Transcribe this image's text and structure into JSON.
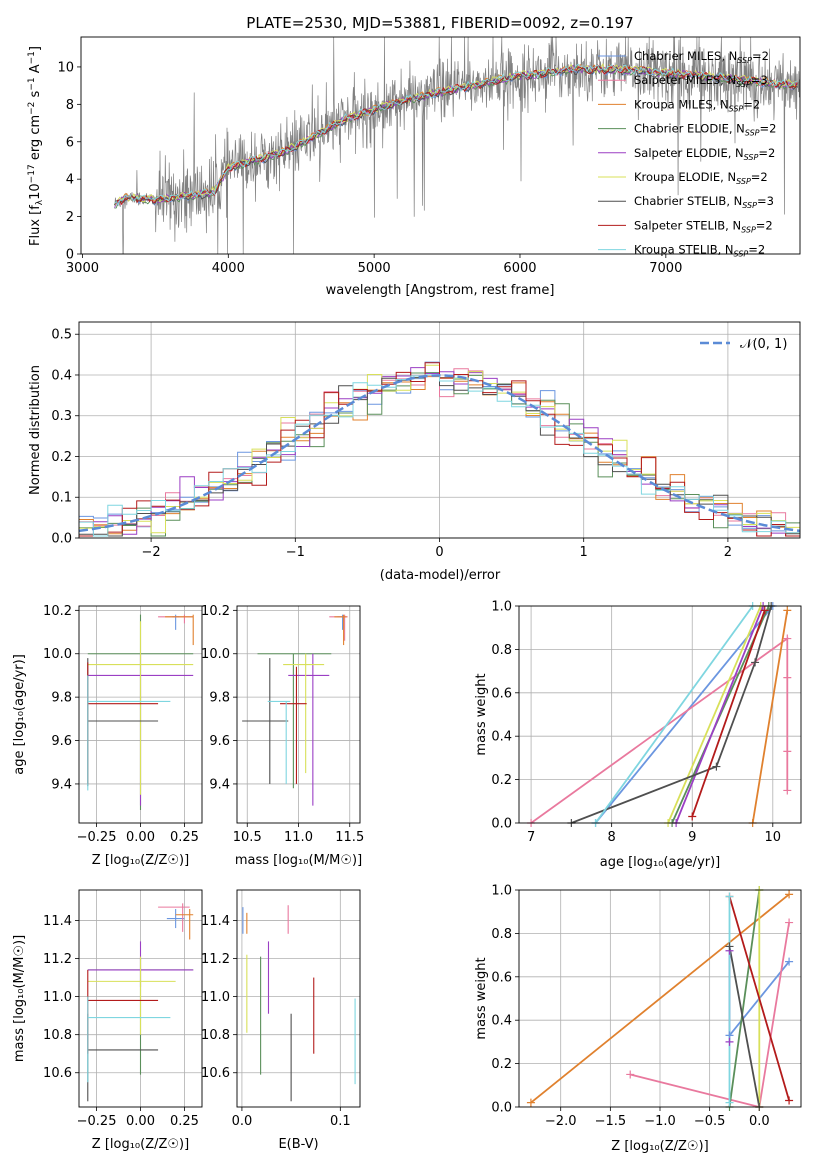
{
  "title": "PLATE=2530, MJD=53881, FIBERID=0092, z=0.197",
  "models": [
    {
      "label": "Chabrier MILES, N",
      "suffix": "=2",
      "color": "#6b96e0"
    },
    {
      "label": "Salpeter MILES, N",
      "suffix": "=3",
      "color": "#e9799e"
    },
    {
      "label": "Kroupa MILES, N",
      "suffix": "=2",
      "color": "#e0812e"
    },
    {
      "label": "Chabrier ELODIE, N",
      "suffix": "=2",
      "color": "#5a8f5a"
    },
    {
      "label": "Salpeter ELODIE, N",
      "suffix": "=2",
      "color": "#9b3fc4"
    },
    {
      "label": "Kroupa ELODIE, N",
      "suffix": "=2",
      "color": "#d8e05a"
    },
    {
      "label": "Chabrier STELIB, N",
      "suffix": "=3",
      "color": "#4f4f4f"
    },
    {
      "label": "Salpeter STELIB, N",
      "suffix": "=2",
      "color": "#b31b1b"
    },
    {
      "label": "Kroupa STELIB, N",
      "suffix": "=2",
      "color": "#7fd6e0"
    }
  ],
  "legend_sub": "SSP",
  "chart_data": [
    {
      "type": "line",
      "name": "spectrum",
      "xlabel": "wavelength [Angstrom, rest frame]",
      "ylabel": "Flux [f",
      "ylabel_parts": [
        "Flux [f",
        "λ",
        "10",
        "−17",
        " erg cm",
        "−2",
        " s",
        "−1",
        " A",
        "−1",
        "]"
      ],
      "xlim": [
        2990,
        7920
      ],
      "ylim": [
        0,
        11.6
      ],
      "xticks": [
        3000,
        4000,
        5000,
        6000,
        7000
      ],
      "yticks": [
        0,
        2,
        4,
        6,
        8,
        10
      ],
      "data_color": "#808080",
      "model_anchor_x": [
        3220,
        3300,
        3500,
        3900,
        4000,
        4400,
        4800,
        5200,
        5600,
        6000,
        6400,
        6800,
        7400,
        7900
      ],
      "model_anchor_y": [
        2.7,
        3.0,
        2.9,
        3.3,
        4.6,
        5.5,
        7.2,
        8.2,
        8.9,
        9.5,
        9.9,
        9.8,
        9.4,
        9.0
      ]
    },
    {
      "type": "step",
      "name": "residuals",
      "xlabel": "(data-model)/error",
      "ylabel": "Normed distribution",
      "xlim": [
        -2.5,
        2.5
      ],
      "ylim": [
        0,
        0.53
      ],
      "xticks": [
        -2,
        -1,
        0,
        1,
        2
      ],
      "xtick_labels": [
        "−2",
        "−1",
        "0",
        "1",
        "2"
      ],
      "yticks": [
        0.0,
        0.1,
        0.2,
        0.3,
        0.4,
        0.5
      ],
      "yticklabels": [
        "0.0",
        "0.1",
        "0.2",
        "0.3",
        "0.4",
        "0.5"
      ],
      "reference_label": "𝒩(0, 1)",
      "reference_color": "#5b8bd6",
      "bin_width": 0.1
    },
    {
      "type": "scatter",
      "name": "age-vs-Z",
      "xlabel": "Z [log",
      "xlabel_full": "Z [log₁₀(Z/Z☉)]",
      "ylabel": "age  [log₁₀(age/yr)]",
      "xlim": [
        -0.35,
        0.35
      ],
      "ylim": [
        9.22,
        10.22
      ],
      "xticks": [
        -0.25,
        0,
        0.25
      ],
      "xticklabels": [
        "−0.25",
        "0.00",
        "0.25"
      ],
      "yticks": [
        9.4,
        9.6,
        9.8,
        10.0,
        10.2
      ],
      "yticklabels": [
        "9.4",
        "9.6",
        "9.8",
        "10.0",
        "10.2"
      ],
      "points": [
        {
          "m": 0,
          "x": 0.2,
          "y": 10.17,
          "xe": [
            0.18,
            0.22
          ],
          "ye": [
            10.11,
            10.18
          ]
        },
        {
          "m": 1,
          "x": 0.25,
          "y": 10.17,
          "xe": [
            0.1,
            0.3
          ],
          "ye": [
            10.14,
            10.18
          ]
        },
        {
          "m": 2,
          "x": 0.3,
          "y": 10.17,
          "xe": [
            0.14,
            0.3
          ],
          "ye": [
            10.04,
            10.18
          ]
        },
        {
          "m": 3,
          "x": 0.0,
          "y": 10.0,
          "xe": [
            -0.3,
            0.3
          ],
          "ye": [
            9.28,
            10.18
          ]
        },
        {
          "m": 4,
          "x": 0.0,
          "y": 9.9,
          "xe": [
            -0.3,
            0.3
          ],
          "ye": [
            9.3,
            10.0
          ]
        },
        {
          "m": 5,
          "x": 0.0,
          "y": 9.95,
          "xe": [
            -0.3,
            0.3
          ],
          "ye": [
            9.35,
            10.15
          ]
        },
        {
          "m": 6,
          "x": -0.3,
          "y": 9.69,
          "xe": [
            -0.3,
            0.1
          ],
          "ye": [
            9.39,
            9.98
          ]
        },
        {
          "m": 7,
          "x": -0.3,
          "y": 9.77,
          "xe": [
            -0.3,
            0.1
          ],
          "ye": [
            9.4,
            9.96
          ]
        },
        {
          "m": 8,
          "x": -0.3,
          "y": 9.78,
          "xe": [
            -0.3,
            0.17
          ],
          "ye": [
            9.37,
            9.9
          ]
        }
      ]
    },
    {
      "type": "scatter",
      "name": "age-vs-mass",
      "xlabel": "mass [log₁₀(M/M☉)]",
      "xlim": [
        10.4,
        11.6
      ],
      "ylim": [
        9.22,
        10.22
      ],
      "xticks": [
        10.5,
        11.0,
        11.5
      ],
      "xticklabels": [
        "10.5",
        "11.0",
        "11.5"
      ],
      "yticks": [
        9.4,
        9.6,
        9.8,
        10.0,
        10.2
      ],
      "yticklabels": [
        "9.4",
        "9.6",
        "9.8",
        "10.0",
        "10.2"
      ],
      "points": [
        {
          "m": 0,
          "x": 11.43,
          "y": 10.17,
          "xe": [
            11.38,
            11.45
          ],
          "ye": [
            10.11,
            10.18
          ]
        },
        {
          "m": 1,
          "x": 11.45,
          "y": 10.17,
          "xe": [
            11.3,
            11.48
          ],
          "ye": [
            10.06,
            10.18
          ]
        },
        {
          "m": 2,
          "x": 11.44,
          "y": 10.17,
          "xe": [
            11.35,
            11.47
          ],
          "ye": [
            10.04,
            10.18
          ]
        },
        {
          "m": 3,
          "x": 10.95,
          "y": 10.0,
          "xe": [
            10.6,
            11.32
          ],
          "ye": [
            9.38,
            10.0
          ]
        },
        {
          "m": 4,
          "x": 11.14,
          "y": 9.9,
          "xe": [
            10.9,
            11.3
          ],
          "ye": [
            9.3,
            10.0
          ]
        },
        {
          "m": 5,
          "x": 11.07,
          "y": 9.95,
          "xe": [
            10.85,
            11.25
          ],
          "ye": [
            9.45,
            10.0
          ]
        },
        {
          "m": 6,
          "x": 10.72,
          "y": 9.69,
          "xe": [
            10.45,
            10.9
          ],
          "ye": [
            9.4,
            9.98
          ]
        },
        {
          "m": 7,
          "x": 10.98,
          "y": 9.77,
          "xe": [
            10.82,
            11.08
          ],
          "ye": [
            9.4,
            9.94
          ]
        },
        {
          "m": 8,
          "x": 10.88,
          "y": 9.78,
          "xe": [
            10.7,
            10.92
          ],
          "ye": [
            9.4,
            9.78
          ]
        }
      ]
    },
    {
      "type": "line",
      "name": "massweight-vs-age",
      "xlabel": "age  [log₁₀(age/yr)]",
      "ylabel": "mass weight",
      "xlim": [
        6.85,
        10.35
      ],
      "ylim": [
        0,
        1.0
      ],
      "xticks": [
        7,
        8,
        9,
        10
      ],
      "xticklabels": [
        "7",
        "8",
        "9",
        "10"
      ],
      "yticks": [
        0.0,
        0.2,
        0.4,
        0.6,
        0.8,
        1.0
      ],
      "yticklabels": [
        "0.0",
        "0.2",
        "0.4",
        "0.6",
        "0.8",
        "1.0"
      ],
      "series": [
        {
          "m": 0,
          "x": [
            7.8,
            10.0
          ],
          "y": [
            0.0,
            1.0
          ]
        },
        {
          "m": 1,
          "x": [
            7.0,
            10.18,
            10.18,
            10.18,
            10.18
          ],
          "y": [
            0.0,
            0.85,
            0.67,
            0.33,
            0.15
          ]
        },
        {
          "m": 2,
          "x": [
            9.75,
            10.18
          ],
          "y": [
            0.0,
            0.98
          ]
        },
        {
          "m": 3,
          "x": [
            8.75,
            9.95
          ],
          "y": [
            0.0,
            1.0
          ]
        },
        {
          "m": 4,
          "x": [
            8.8,
            9.88
          ],
          "y": [
            0.0,
            1.0
          ]
        },
        {
          "m": 5,
          "x": [
            8.7,
            9.85
          ],
          "y": [
            0.0,
            1.0
          ]
        },
        {
          "m": 6,
          "x": [
            7.5,
            9.3,
            9.78,
            9.98
          ],
          "y": [
            0.0,
            0.26,
            0.74,
            1.0
          ]
        },
        {
          "m": 7,
          "x": [
            9.0,
            9.9
          ],
          "y": [
            0.03,
            0.98
          ]
        },
        {
          "m": 8,
          "x": [
            7.8,
            9.75
          ],
          "y": [
            0.0,
            1.0
          ]
        }
      ]
    },
    {
      "type": "scatter",
      "name": "mass-vs-Z",
      "xlabel": "Z [log₁₀(Z/Z☉)]",
      "ylabel": "mass [log₁₀(M/M☉)]",
      "xlim": [
        -0.35,
        0.35
      ],
      "ylim": [
        10.42,
        11.56
      ],
      "xticks": [
        -0.25,
        0,
        0.25
      ],
      "xticklabels": [
        "−0.25",
        "0.00",
        "0.25"
      ],
      "yticks": [
        10.6,
        10.8,
        11.0,
        11.2,
        11.4
      ],
      "yticklabels": [
        "10.6",
        "10.8",
        "11.0",
        "11.2",
        "11.4"
      ],
      "points": [
        {
          "m": 0,
          "x": 0.2,
          "y": 11.41,
          "xe": [
            0.15,
            0.25
          ],
          "ye": [
            11.36,
            11.46
          ]
        },
        {
          "m": 1,
          "x": 0.24,
          "y": 11.47,
          "xe": [
            0.1,
            0.28
          ],
          "ye": [
            11.34,
            11.49
          ]
        },
        {
          "m": 2,
          "x": 0.28,
          "y": 11.43,
          "xe": [
            0.2,
            0.3
          ],
          "ye": [
            11.3,
            11.46
          ]
        },
        {
          "m": 3,
          "x": 0.0,
          "y": 11.14,
          "xe": [
            -0.3,
            0.3
          ],
          "ye": [
            10.59,
            11.2
          ]
        },
        {
          "m": 4,
          "x": 0.0,
          "y": 11.14,
          "xe": [
            -0.3,
            0.3
          ],
          "ye": [
            11.05,
            11.29
          ]
        },
        {
          "m": 5,
          "x": 0.0,
          "y": 11.08,
          "xe": [
            -0.3,
            0.2
          ],
          "ye": [
            10.8,
            11.21
          ]
        },
        {
          "m": 6,
          "x": -0.3,
          "y": 10.72,
          "xe": [
            -0.3,
            0.1
          ],
          "ye": [
            10.45,
            10.91
          ]
        },
        {
          "m": 7,
          "x": -0.3,
          "y": 10.98,
          "xe": [
            -0.3,
            0.1
          ],
          "ye": [
            10.7,
            11.14
          ]
        },
        {
          "m": 8,
          "x": -0.3,
          "y": 10.89,
          "xe": [
            -0.3,
            0.17
          ],
          "ye": [
            10.55,
            11.0
          ]
        }
      ]
    },
    {
      "type": "scatter",
      "name": "mass-vs-EBV",
      "xlabel": "E(B-V)",
      "xlim": [
        -0.005,
        0.12
      ],
      "ylim": [
        10.42,
        11.56
      ],
      "xticks": [
        0.0,
        0.1
      ],
      "xticklabels": [
        "0.0",
        "0.1"
      ],
      "yticks": [
        10.6,
        10.8,
        11.0,
        11.2,
        11.4
      ],
      "yticklabels": [
        "10.6",
        "10.8",
        "11.0",
        "11.2",
        "11.4"
      ],
      "points": [
        {
          "m": 0,
          "x": 0.001,
          "y": 11.41,
          "ye": [
            11.33,
            11.47
          ]
        },
        {
          "m": 1,
          "x": 0.047,
          "y": 11.41,
          "ye": [
            11.33,
            11.48
          ]
        },
        {
          "m": 2,
          "x": 0.005,
          "y": 11.41,
          "ye": [
            11.33,
            11.44
          ]
        },
        {
          "m": 3,
          "x": 0.019,
          "y": 10.9,
          "ye": [
            10.59,
            11.21
          ]
        },
        {
          "m": 4,
          "x": 0.027,
          "y": 11.1,
          "ye": [
            10.91,
            11.29
          ]
        },
        {
          "m": 5,
          "x": 0.005,
          "y": 11.0,
          "ye": [
            10.81,
            11.22
          ]
        },
        {
          "m": 6,
          "x": 0.05,
          "y": 10.73,
          "ye": [
            10.45,
            10.91
          ]
        },
        {
          "m": 7,
          "x": 0.073,
          "y": 10.9,
          "ye": [
            10.7,
            11.1
          ]
        },
        {
          "m": 8,
          "x": 0.115,
          "y": 10.75,
          "ye": [
            10.54,
            10.99
          ]
        }
      ]
    },
    {
      "type": "line",
      "name": "massweight-vs-Z",
      "xlabel": "Z [log₁₀(Z/Z☉)]",
      "ylabel": "mass weight",
      "xlim": [
        -2.42,
        0.42
      ],
      "ylim": [
        0,
        1.0
      ],
      "xticks": [
        -2.0,
        -1.5,
        -1.0,
        -0.5,
        0.0
      ],
      "xticklabels": [
        "−2.0",
        "−1.5",
        "−1.0",
        "−0.5",
        "0.0"
      ],
      "yticks": [
        0.0,
        0.2,
        0.4,
        0.6,
        0.8,
        1.0
      ],
      "yticklabels": [
        "0.0",
        "0.2",
        "0.4",
        "0.6",
        "0.8",
        "1.0"
      ],
      "series": [
        {
          "m": 0,
          "x": [
            -0.3,
            0.3
          ],
          "y": [
            0.33,
            0.67
          ]
        },
        {
          "m": 1,
          "x": [
            -1.3,
            0.0,
            0.3
          ],
          "y": [
            0.15,
            0.0,
            0.85
          ]
        },
        {
          "m": 2,
          "x": [
            -2.3,
            0.3
          ],
          "y": [
            0.02,
            0.98
          ]
        },
        {
          "m": 3,
          "x": [
            -0.3,
            0.0
          ],
          "y": [
            0.0,
            1.0
          ]
        },
        {
          "m": 4,
          "x": [
            -0.3,
            -0.3
          ],
          "y": [
            0.3,
            0.72
          ]
        },
        {
          "m": 5,
          "x": [
            0.0,
            0.0
          ],
          "y": [
            0.0,
            1.0
          ]
        },
        {
          "m": 6,
          "x": [
            -0.3,
            0.0
          ],
          "y": [
            0.74,
            0.0
          ]
        },
        {
          "m": 7,
          "x": [
            -0.3,
            0.3
          ],
          "y": [
            0.97,
            0.03
          ]
        },
        {
          "m": 8,
          "x": [
            -0.3,
            -0.3
          ],
          "y": [
            0.02,
            0.97
          ]
        }
      ]
    }
  ]
}
